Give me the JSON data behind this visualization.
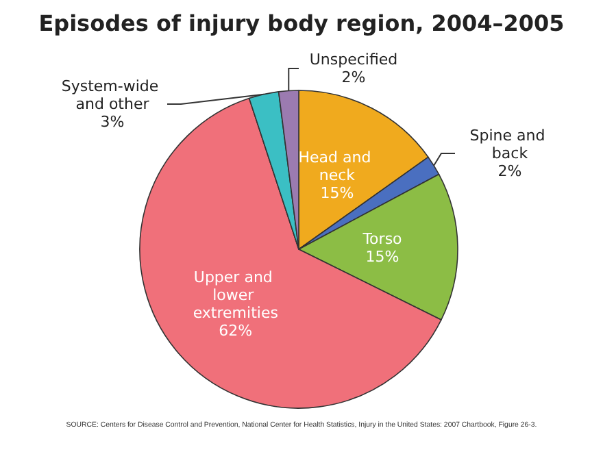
{
  "chart_data": {
    "type": "pie",
    "title": "Episodes of injury body region, 2004–2005",
    "categories": [
      "Head and neck",
      "Spine and back",
      "Torso",
      "Upper and lower extremities",
      "System-wide and other",
      "Unspecified"
    ],
    "values": [
      15,
      2,
      15,
      62,
      3,
      2
    ],
    "colors": [
      "#f0aa1e",
      "#4a6fc0",
      "#8cbd45",
      "#f0707a",
      "#3bbfc4",
      "#9b7bb0"
    ],
    "value_labels": [
      "15%",
      "2%",
      "15%",
      "62%",
      "3%",
      "2%"
    ],
    "annotations": [
      "SOURCE: Centers for Disease Control and Prevention, National Center for Health Statistics, Injury in the United States: 2007 Chartbook, Figure 26-3."
    ]
  }
}
